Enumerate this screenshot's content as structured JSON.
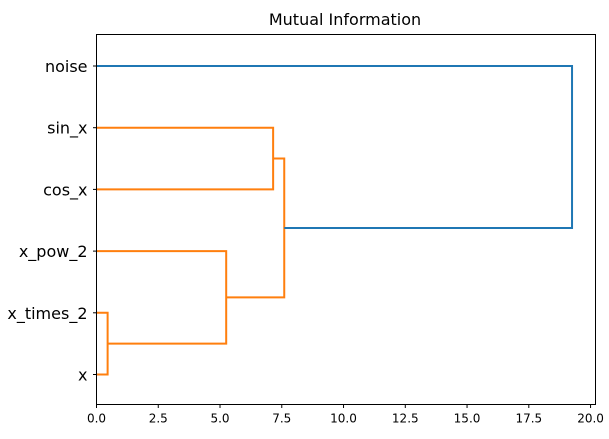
{
  "chart_data": {
    "type": "dendrogram",
    "title": "Mutual Information",
    "xlabel": "",
    "ylabel": "",
    "xlim": [
      0.0,
      20.2
    ],
    "x_ticks": [
      0.0,
      2.5,
      5.0,
      7.5,
      10.0,
      12.5,
      15.0,
      17.5,
      20.0
    ],
    "x_tick_labels": [
      "0.0",
      "2.5",
      "5.0",
      "7.5",
      "10.0",
      "12.5",
      "15.0",
      "17.5",
      "20.0"
    ],
    "orientation": "right",
    "grid": false,
    "leaves": [
      "noise",
      "sin_x",
      "cos_x",
      "x_pow_2",
      "x_times_2",
      "x"
    ],
    "links": [
      {
        "a": "x_times_2",
        "b": "x",
        "height": 0.45,
        "color": "#ff7f0e"
      },
      {
        "a": "x_pow_2",
        "b": "x_times_2+x",
        "height": 5.25,
        "color": "#ff7f0e"
      },
      {
        "a": "sin_x",
        "b": "cos_x",
        "height": 7.15,
        "color": "#ff7f0e"
      },
      {
        "a": "sin_x+cos_x",
        "b": "x_pow_2+x_times_2+x",
        "height": 7.6,
        "color": "#ff7f0e"
      },
      {
        "a": "noise",
        "b": "sin_x+cos_x+x_pow_2+x_times_2+x",
        "height": 19.25,
        "color": "#1f77b4"
      }
    ],
    "colors": {
      "cluster": "#ff7f0e",
      "above_threshold": "#1f77b4",
      "axis": "#000000"
    }
  }
}
